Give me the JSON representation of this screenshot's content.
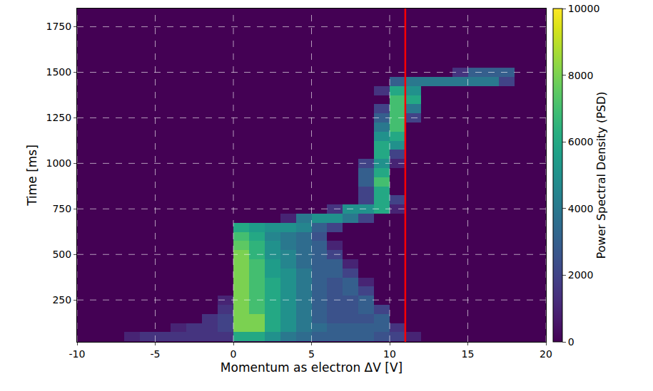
{
  "chart_data": {
    "type": "heatmap",
    "x_label": "Momentum as electron ΔV [V]",
    "y_label": "Time [ms]",
    "xlim": [
      -10,
      20
    ],
    "xticks": [
      -10,
      -5,
      0,
      5,
      10,
      15,
      20
    ],
    "ylim": [
      20,
      1850
    ],
    "yticks": [
      250,
      500,
      750,
      1000,
      1250,
      1500,
      1750
    ],
    "grid": true,
    "x": [
      -9.5,
      -8.5,
      -7.5,
      -6.5,
      -5.5,
      -4.5,
      -3.5,
      -2.5,
      -1.5,
      -0.5,
      0.5,
      1.5,
      2.5,
      3.5,
      4.5,
      5.5,
      6.5,
      7.5,
      8.5,
      9.5,
      10.5,
      11.5,
      12.5,
      13.5,
      14.5,
      15.5,
      16.5,
      17.5,
      18.5,
      19.5
    ],
    "y": [
      50,
      100,
      150,
      200,
      250,
      300,
      350,
      400,
      450,
      500,
      550,
      600,
      650,
      700,
      750,
      800,
      850,
      900,
      950,
      1000,
      1050,
      1100,
      1150,
      1200,
      1250,
      1300,
      1350,
      1400,
      1450,
      1500
    ],
    "z": [
      [
        0,
        0,
        0,
        1000,
        1500,
        1500,
        1500,
        1500,
        1500,
        1500,
        6000,
        6000,
        5000,
        4000,
        3500,
        3000,
        3000,
        3000,
        3000,
        2500,
        2000,
        1000,
        0,
        0,
        0,
        0,
        0,
        0,
        0,
        0
      ],
      [
        0,
        0,
        0,
        0,
        0,
        0,
        1000,
        1500,
        1500,
        2000,
        8000,
        8000,
        6000,
        5000,
        4000,
        3500,
        3000,
        3000,
        3000,
        3000,
        1500,
        0,
        0,
        0,
        0,
        0,
        0,
        0,
        0,
        0
      ],
      [
        0,
        0,
        0,
        0,
        0,
        0,
        0,
        0,
        1500,
        2000,
        8000,
        8000,
        6000,
        5000,
        4000,
        3000,
        2500,
        2500,
        2500,
        3000,
        0,
        0,
        0,
        0,
        0,
        0,
        0,
        0,
        0,
        0
      ],
      [
        0,
        0,
        0,
        0,
        0,
        0,
        0,
        0,
        0,
        1500,
        8000,
        7000,
        6000,
        5000,
        4000,
        3000,
        2500,
        2500,
        3000,
        2000,
        0,
        0,
        0,
        0,
        0,
        0,
        0,
        0,
        0,
        0
      ],
      [
        0,
        0,
        0,
        0,
        0,
        0,
        0,
        0,
        0,
        1000,
        8000,
        7000,
        6000,
        5000,
        4000,
        3000,
        2500,
        2500,
        3000,
        0,
        0,
        0,
        0,
        0,
        0,
        0,
        0,
        0,
        0,
        0
      ],
      [
        0,
        0,
        0,
        0,
        0,
        0,
        0,
        0,
        0,
        0,
        8000,
        7000,
        6000,
        5000,
        4000,
        3000,
        2500,
        3000,
        2000,
        0,
        0,
        0,
        0,
        0,
        0,
        0,
        0,
        0,
        0,
        0
      ],
      [
        0,
        0,
        0,
        0,
        0,
        0,
        0,
        0,
        0,
        0,
        8000,
        7000,
        6000,
        5000,
        4000,
        3000,
        2500,
        3000,
        1000,
        0,
        0,
        0,
        0,
        0,
        0,
        0,
        0,
        0,
        0,
        0
      ],
      [
        0,
        0,
        0,
        0,
        0,
        0,
        0,
        0,
        0,
        0,
        8000,
        7000,
        5500,
        5000,
        4000,
        3000,
        3000,
        2000,
        0,
        0,
        0,
        0,
        0,
        0,
        0,
        0,
        0,
        0,
        0,
        0
      ],
      [
        0,
        0,
        0,
        0,
        0,
        0,
        0,
        0,
        0,
        0,
        8000,
        7000,
        5500,
        4500,
        3500,
        3000,
        3000,
        1000,
        0,
        0,
        0,
        0,
        0,
        0,
        0,
        0,
        0,
        0,
        0,
        0
      ],
      [
        0,
        0,
        0,
        0,
        0,
        0,
        0,
        0,
        0,
        0,
        8000,
        6500,
        5000,
        4500,
        3500,
        3000,
        2000,
        0,
        0,
        0,
        0,
        0,
        0,
        0,
        0,
        0,
        0,
        0,
        0,
        0
      ],
      [
        0,
        0,
        0,
        0,
        0,
        0,
        0,
        0,
        0,
        0,
        7500,
        6500,
        5000,
        4000,
        3500,
        3000,
        1000,
        0,
        0,
        0,
        0,
        0,
        0,
        0,
        0,
        0,
        0,
        0,
        0,
        0
      ],
      [
        0,
        0,
        0,
        0,
        0,
        0,
        0,
        0,
        0,
        0,
        7000,
        6000,
        4500,
        4000,
        3500,
        2500,
        0,
        0,
        0,
        0,
        0,
        0,
        0,
        0,
        0,
        0,
        0,
        0,
        0,
        0
      ],
      [
        0,
        0,
        0,
        0,
        0,
        0,
        0,
        0,
        0,
        0,
        6000,
        5500,
        5000,
        5000,
        4500,
        3000,
        2000,
        0,
        0,
        0,
        0,
        0,
        0,
        0,
        0,
        0,
        0,
        0,
        0,
        0
      ],
      [
        0,
        0,
        0,
        0,
        0,
        0,
        0,
        0,
        0,
        0,
        0,
        0,
        0,
        1000,
        4000,
        5000,
        5000,
        4000,
        2000,
        0,
        0,
        0,
        0,
        0,
        0,
        0,
        0,
        0,
        0,
        0
      ],
      [
        0,
        0,
        0,
        0,
        0,
        0,
        0,
        0,
        0,
        0,
        0,
        0,
        0,
        0,
        0,
        0,
        1500,
        5000,
        5000,
        6000,
        1000,
        0,
        0,
        0,
        0,
        0,
        0,
        0,
        0,
        0
      ],
      [
        0,
        0,
        0,
        0,
        0,
        0,
        0,
        0,
        0,
        0,
        0,
        0,
        0,
        0,
        0,
        0,
        0,
        0,
        2000,
        6000,
        2000,
        0,
        0,
        0,
        0,
        0,
        0,
        0,
        0,
        0
      ],
      [
        0,
        0,
        0,
        0,
        0,
        0,
        0,
        0,
        0,
        0,
        0,
        0,
        0,
        0,
        0,
        0,
        0,
        0,
        2000,
        6000,
        0,
        0,
        0,
        0,
        0,
        0,
        0,
        0,
        0,
        0
      ],
      [
        0,
        0,
        0,
        0,
        0,
        0,
        0,
        0,
        0,
        0,
        0,
        0,
        0,
        0,
        0,
        0,
        0,
        0,
        3000,
        7000,
        0,
        0,
        0,
        0,
        0,
        0,
        0,
        0,
        0,
        0
      ],
      [
        0,
        0,
        0,
        0,
        0,
        0,
        0,
        0,
        0,
        0,
        0,
        0,
        0,
        0,
        0,
        0,
        0,
        0,
        3000,
        6000,
        0,
        0,
        0,
        0,
        0,
        0,
        0,
        0,
        0,
        0
      ],
      [
        0,
        0,
        0,
        0,
        0,
        0,
        0,
        0,
        0,
        0,
        0,
        0,
        0,
        0,
        0,
        0,
        0,
        0,
        2000,
        5000,
        1000,
        0,
        0,
        0,
        0,
        0,
        0,
        0,
        0,
        0
      ],
      [
        0,
        0,
        0,
        0,
        0,
        0,
        0,
        0,
        0,
        0,
        0,
        0,
        0,
        0,
        0,
        0,
        0,
        0,
        0,
        6000,
        2000,
        0,
        0,
        0,
        0,
        0,
        0,
        0,
        0,
        0
      ],
      [
        0,
        0,
        0,
        0,
        0,
        0,
        0,
        0,
        0,
        0,
        0,
        0,
        0,
        0,
        0,
        0,
        0,
        0,
        0,
        6000,
        5000,
        0,
        0,
        0,
        0,
        0,
        0,
        0,
        0,
        0
      ],
      [
        0,
        0,
        0,
        0,
        0,
        0,
        0,
        0,
        0,
        0,
        0,
        0,
        0,
        0,
        0,
        0,
        0,
        0,
        0,
        5000,
        6000,
        0,
        0,
        0,
        0,
        0,
        0,
        0,
        0,
        0
      ],
      [
        0,
        0,
        0,
        0,
        0,
        0,
        0,
        0,
        0,
        0,
        0,
        0,
        0,
        0,
        0,
        0,
        0,
        0,
        0,
        4000,
        7000,
        0,
        0,
        0,
        0,
        0,
        0,
        0,
        0,
        0
      ],
      [
        0,
        0,
        0,
        0,
        0,
        0,
        0,
        0,
        0,
        0,
        0,
        0,
        0,
        0,
        0,
        0,
        0,
        0,
        0,
        3000,
        7000,
        2000,
        0,
        0,
        0,
        0,
        0,
        0,
        0,
        0
      ],
      [
        0,
        0,
        0,
        0,
        0,
        0,
        0,
        0,
        0,
        0,
        0,
        0,
        0,
        0,
        0,
        0,
        0,
        0,
        0,
        2000,
        7000,
        4000,
        0,
        0,
        0,
        0,
        0,
        0,
        0,
        0
      ],
      [
        0,
        0,
        0,
        0,
        0,
        0,
        0,
        0,
        0,
        0,
        0,
        0,
        0,
        0,
        0,
        0,
        0,
        0,
        0,
        0,
        7000,
        6000,
        0,
        0,
        0,
        0,
        0,
        0,
        0,
        0
      ],
      [
        0,
        0,
        0,
        0,
        0,
        0,
        0,
        0,
        0,
        0,
        0,
        0,
        0,
        0,
        0,
        0,
        0,
        0,
        0,
        1500,
        6000,
        5000,
        0,
        0,
        0,
        0,
        0,
        0,
        0,
        0
      ],
      [
        0,
        0,
        0,
        0,
        0,
        0,
        0,
        0,
        0,
        0,
        0,
        0,
        0,
        0,
        0,
        0,
        0,
        0,
        0,
        0,
        3000,
        4000,
        4000,
        4000,
        4000,
        4000,
        4000,
        2000,
        0,
        0
      ],
      [
        0,
        0,
        0,
        0,
        0,
        0,
        0,
        0,
        0,
        0,
        0,
        0,
        0,
        0,
        0,
        0,
        0,
        0,
        0,
        0,
        0,
        0,
        0,
        0,
        1500,
        3000,
        3000,
        3000,
        0,
        0
      ]
    ],
    "colorbar": {
      "title": "Power Spectral Density (PSD)",
      "range": [
        0,
        10000
      ],
      "ticks": [
        0,
        2000,
        4000,
        6000,
        8000,
        10000
      ]
    },
    "vlines": [
      {
        "x": 11,
        "color": "#ff0000"
      }
    ]
  }
}
